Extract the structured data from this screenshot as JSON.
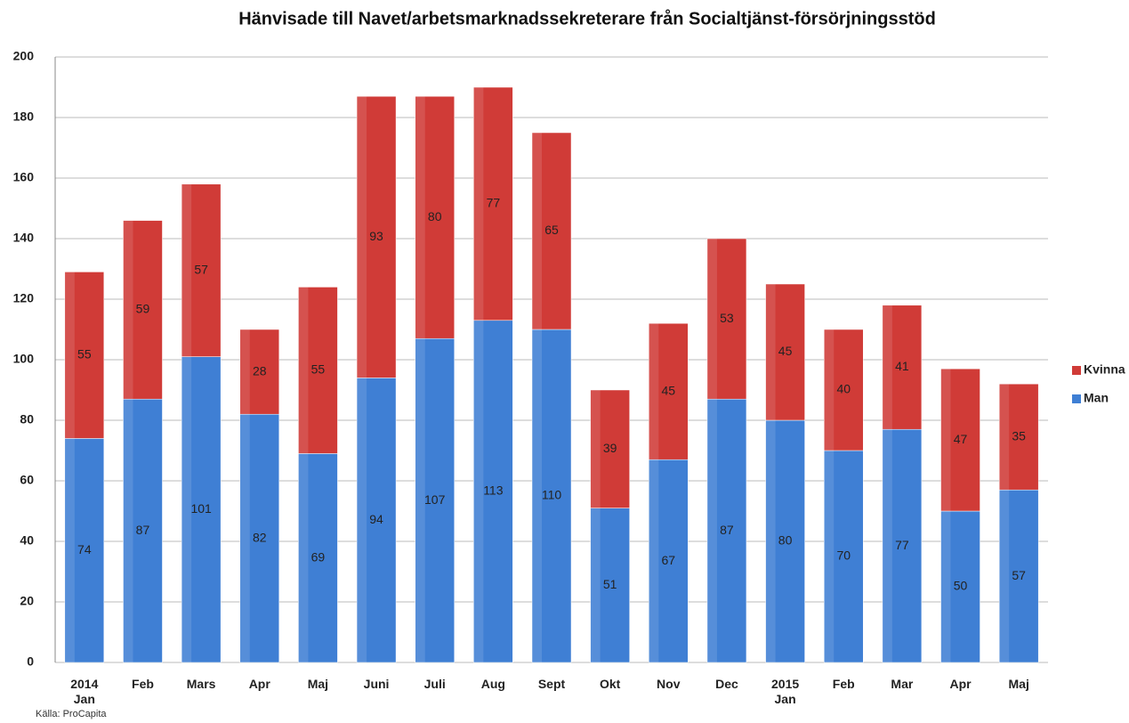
{
  "chart_data": {
    "type": "stacked_bar",
    "title": "Hänvisade till Navet/arbetsmarknadssekreterare från Socialtjänst-försörjningsstöd",
    "categories": [
      "2014 Jan",
      "Feb",
      "Mars",
      "Apr",
      "Maj",
      "Juni",
      "Juli",
      "Aug",
      "Sept",
      "Okt",
      "Nov",
      "Dec",
      "2015 Jan",
      "Feb",
      "Mar",
      "Apr",
      "Maj"
    ],
    "series": [
      {
        "name": "Man",
        "color": "#3f7fd4",
        "values": [
          74,
          87,
          101,
          82,
          69,
          94,
          107,
          113,
          110,
          51,
          67,
          87,
          80,
          70,
          77,
          50,
          57
        ]
      },
      {
        "name": "Kvinna",
        "color": "#d03b37",
        "values": [
          55,
          59,
          57,
          28,
          55,
          93,
          80,
          77,
          65,
          39,
          45,
          53,
          45,
          40,
          41,
          47,
          35
        ]
      }
    ],
    "ylim": [
      0,
      200
    ],
    "yticks": [
      0,
      20,
      40,
      60,
      80,
      100,
      120,
      140,
      160,
      180,
      200
    ],
    "grid": true,
    "legend": "right",
    "source": "Källa: ProCapita"
  }
}
